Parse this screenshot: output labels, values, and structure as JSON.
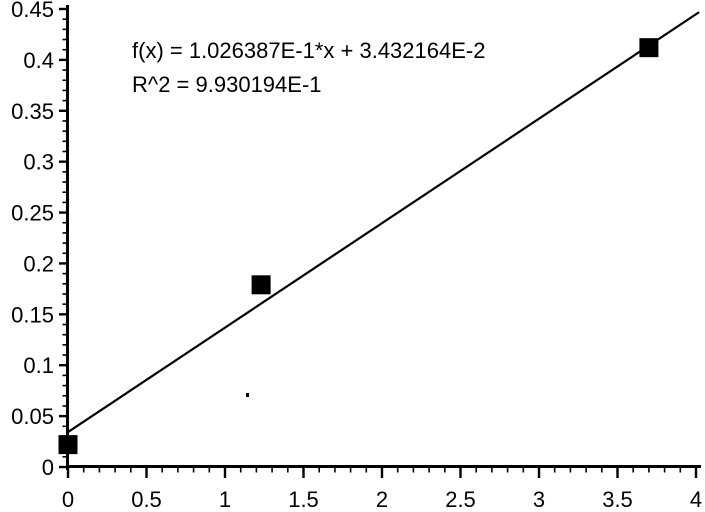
{
  "chart_data": {
    "type": "scatter",
    "title": "",
    "xlabel": "",
    "ylabel": "",
    "grid": false,
    "legend_position": "none",
    "background_color": "#ffffff",
    "ink_color": "#000000",
    "annotation": {
      "line1": "f(x) = 1.026387E-1*x + 3.432164E-2",
      "line2": "R^2 = 9.930194E-1"
    },
    "series": [
      {
        "name": "measured-points",
        "marker": "filled-square",
        "marker_size_px": 19,
        "color": "#000000",
        "points": [
          {
            "x": 0.0,
            "y": 0.022
          },
          {
            "x": 1.23,
            "y": 0.179
          },
          {
            "x": 3.7,
            "y": 0.412
          }
        ]
      }
    ],
    "fit_line": {
      "slope": 0.1026387,
      "intercept": 0.03432164,
      "r_squared": 0.9930194,
      "x_start": 0,
      "x_end": 4.02,
      "color": "#000000"
    },
    "x_axis": {
      "min": 0,
      "max": 4,
      "major_step": 0.5,
      "minor_step": 0.1,
      "tick_labels": [
        "0",
        "0.5",
        "1",
        "1.5",
        "2",
        "2.5",
        "3",
        "3.5",
        "4"
      ]
    },
    "y_axis": {
      "min": 0,
      "max": 0.45,
      "major_step": 0.05,
      "minor_step": 0.01,
      "tick_labels": [
        "0",
        "0.05",
        "0.1",
        "0.15",
        "0.2",
        "0.25",
        "0.3",
        "0.35",
        "0.4",
        "0.45"
      ]
    }
  }
}
